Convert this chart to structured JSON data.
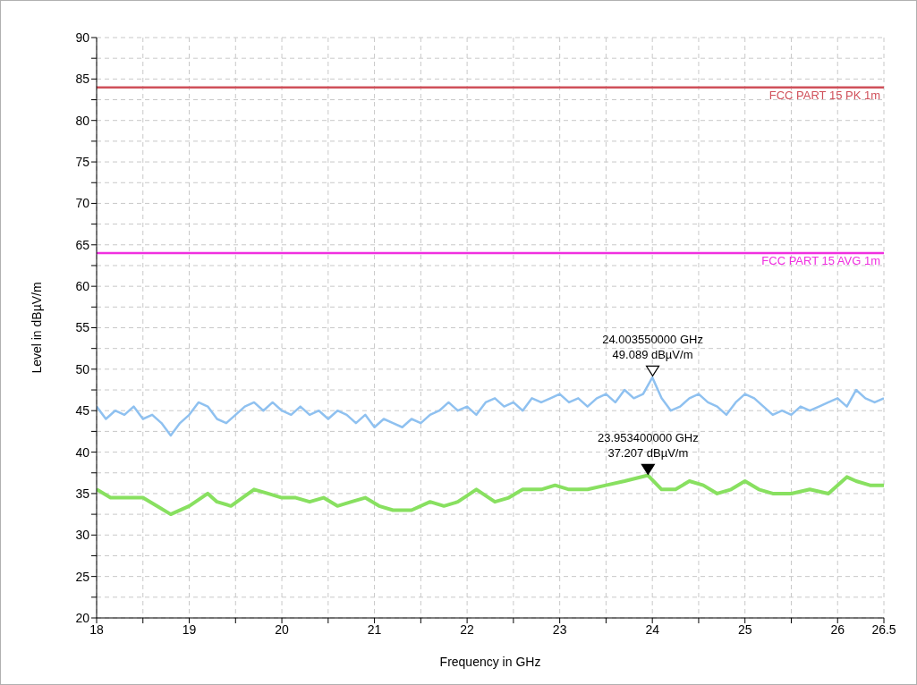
{
  "chart_data": {
    "type": "line",
    "xlabel": "Frequency in GHz",
    "ylabel": "Level in dBµV/m",
    "xlim": [
      18,
      26.5
    ],
    "xticks": [
      18,
      {
        "value": 18.5,
        "label": null
      },
      19,
      {
        "value": 19.5,
        "label": null
      },
      20,
      {
        "value": 20.5,
        "label": null
      },
      21,
      {
        "value": 21.5,
        "label": null
      },
      22,
      {
        "value": 22.5,
        "label": null
      },
      23,
      {
        "value": 23.5,
        "label": null
      },
      24,
      {
        "value": 24.5,
        "label": null
      },
      25,
      {
        "value": 25.5,
        "label": null
      },
      26,
      26.5
    ],
    "ylim": [
      20,
      90
    ],
    "yticks": [
      20,
      {
        "value": 22.5,
        "label": null
      },
      25,
      {
        "value": 27.5,
        "label": null
      },
      30,
      {
        "value": 32.5,
        "label": null
      },
      35,
      {
        "value": 37.5,
        "label": null
      },
      40,
      {
        "value": 42.5,
        "label": null
      },
      45,
      {
        "value": 47.5,
        "label": null
      },
      50,
      {
        "value": 52.5,
        "label": null
      },
      55,
      {
        "value": 57.5,
        "label": null
      },
      60,
      {
        "value": 62.5,
        "label": null
      },
      65,
      {
        "value": 67.5,
        "label": null
      },
      70,
      {
        "value": 72.5,
        "label": null
      },
      75,
      {
        "value": 77.5,
        "label": null
      },
      80,
      {
        "value": 82.5,
        "label": null
      },
      85,
      {
        "value": 87.5,
        "label": null
      },
      90
    ],
    "grid": true,
    "marker": "none",
    "line_style": "solid",
    "series": [
      {
        "color": "#8fc1f0",
        "x": [
          18,
          18.1,
          18.2,
          18.3,
          18.4,
          18.5,
          18.6,
          18.7,
          18.8,
          18.9,
          19,
          19.1,
          19.2,
          19.3,
          19.4,
          19.5,
          19.6,
          19.7,
          19.8,
          19.9,
          20,
          20.1,
          20.2,
          20.3,
          20.4,
          20.5,
          20.6,
          20.7,
          20.8,
          20.9,
          21,
          21.1,
          21.2,
          21.3,
          21.4,
          21.5,
          21.6,
          21.7,
          21.8,
          21.9,
          22,
          22.1,
          22.2,
          22.3,
          22.4,
          22.5,
          22.6,
          22.7,
          22.8,
          22.9,
          23,
          23.1,
          23.2,
          23.3,
          23.4,
          23.5,
          23.6,
          23.7,
          23.8,
          23.9,
          24,
          24.1,
          24.2,
          24.3,
          24.4,
          24.5,
          24.6,
          24.7,
          24.8,
          24.9,
          25,
          25.1,
          25.2,
          25.3,
          25.4,
          25.5,
          25.6,
          25.7,
          25.8,
          25.9,
          26,
          26.1,
          26.2,
          26.3,
          26.4,
          26.5
        ],
        "values": [
          45.5,
          44,
          45,
          44.5,
          45.5,
          44,
          44.5,
          43.5,
          42,
          43.5,
          44.5,
          46,
          45.5,
          44,
          43.5,
          44.5,
          45.5,
          46,
          45,
          46,
          45,
          44.5,
          45.5,
          44.5,
          45,
          44,
          45,
          44.5,
          43.5,
          44.5,
          43,
          44,
          43.5,
          43,
          44,
          43.5,
          44.5,
          45,
          46,
          45,
          45.5,
          44.5,
          46,
          46.5,
          45.5,
          46,
          45,
          46.5,
          46,
          46.5,
          47,
          46,
          46.5,
          45.5,
          46.5,
          47,
          46,
          47.5,
          46.5,
          47,
          49,
          46.5,
          45,
          45.5,
          46.5,
          47,
          46,
          45.5,
          44.5,
          46,
          47,
          46.5,
          45.5,
          44.5,
          45,
          44.5,
          45.5,
          45,
          45.5,
          46,
          46.5,
          45.5,
          47.5,
          46.5,
          46,
          46.5
        ]
      },
      {
        "color": "#88e060",
        "x": [
          18,
          18.15,
          18.3,
          18.5,
          18.65,
          18.8,
          19,
          19.2,
          19.3,
          19.45,
          19.7,
          19.85,
          20,
          20.15,
          20.3,
          20.45,
          20.6,
          20.75,
          20.9,
          21.05,
          21.2,
          21.4,
          21.6,
          21.75,
          21.9,
          22.1,
          22.3,
          22.45,
          22.6,
          22.8,
          22.95,
          23.1,
          23.3,
          23.5,
          23.7,
          23.953,
          24.1,
          24.25,
          24.4,
          24.55,
          24.7,
          24.85,
          25,
          25.15,
          25.3,
          25.5,
          25.7,
          25.9,
          26.1,
          26.2,
          26.35,
          26.5
        ],
        "values": [
          35.5,
          34.5,
          34.5,
          34.5,
          33.5,
          32.5,
          33.5,
          35,
          34,
          33.5,
          35.5,
          35,
          34.5,
          34.5,
          34,
          34.5,
          33.5,
          34,
          34.5,
          33.5,
          33,
          33,
          34,
          33.5,
          34,
          35.5,
          34,
          34.5,
          35.5,
          35.5,
          36,
          35.5,
          35.5,
          36,
          36.5,
          37.2,
          35.5,
          35.5,
          36.5,
          36,
          35,
          35.5,
          36.5,
          35.5,
          35,
          35,
          35.5,
          35,
          37,
          36.5,
          36,
          36
        ]
      }
    ],
    "ref_lines": [
      {
        "axis": "y",
        "value": 84,
        "label": "FCC PART 15 PK 1m",
        "color": "#d0505a"
      },
      {
        "axis": "y",
        "value": 64,
        "label": "FCC PART 15 AVG 1m",
        "color": "#f030e0"
      }
    ],
    "annotations": [
      {
        "text": "24.003550000 GHz\n49.089 dBµV/m",
        "x": 24.00355,
        "y": 49.089
      },
      {
        "text": "23.953400000 GHz\n37.207 dBµV/m",
        "x": 23.9534,
        "y": 37.207
      }
    ]
  }
}
